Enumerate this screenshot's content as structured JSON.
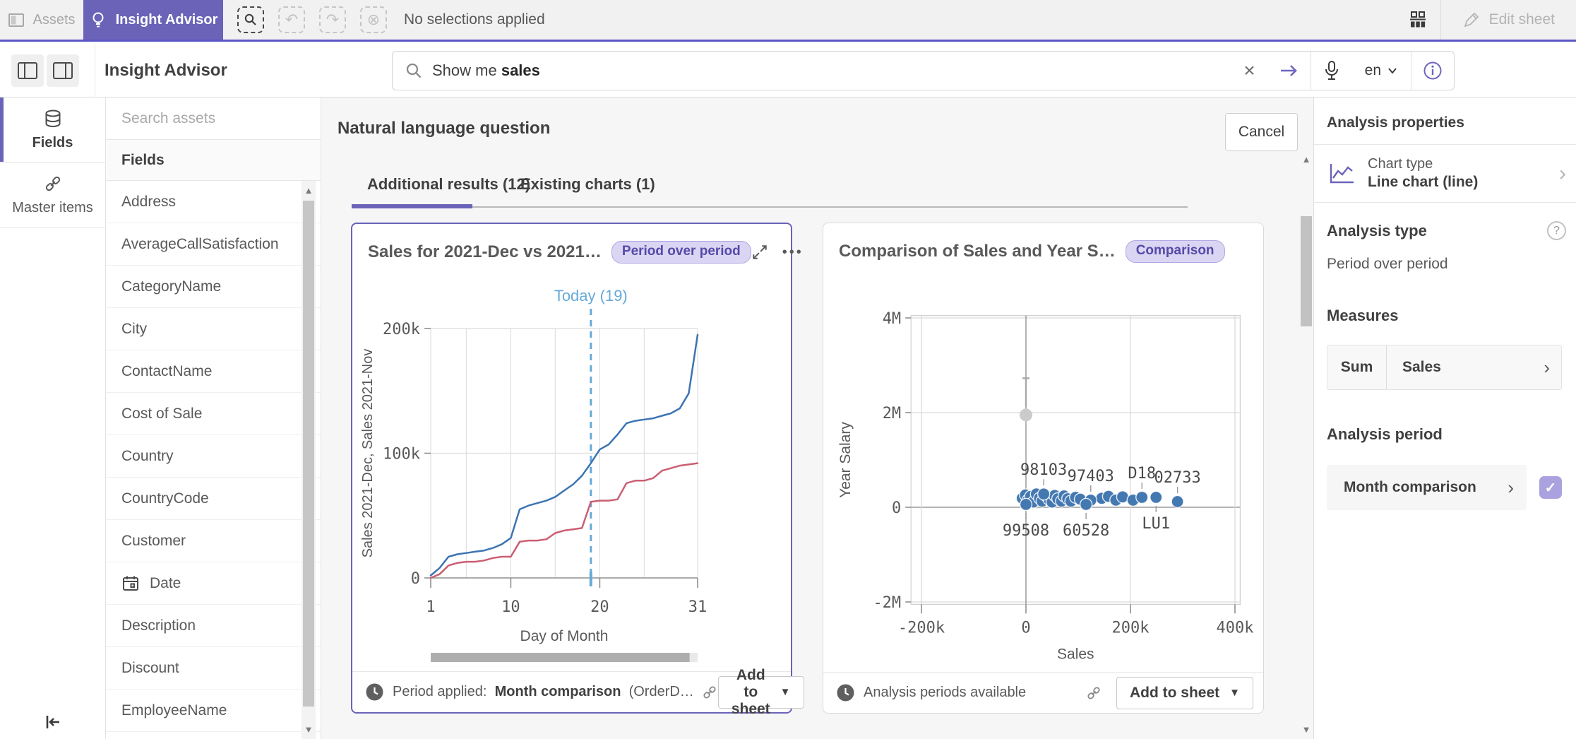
{
  "topbar": {
    "assets_label": "Assets",
    "insight_label": "Insight Advisor",
    "no_selections_label": "No selections applied",
    "edit_sheet_label": "Edit sheet"
  },
  "navbar": {
    "title": "Insight Advisor",
    "search_text_prefix": "Show me ",
    "search_text_term": "sales",
    "language": "en"
  },
  "rail": {
    "fields_label": "Fields",
    "master_items_label": "Master items"
  },
  "assets_panel": {
    "search_placeholder": "Search assets",
    "section_header": "Fields",
    "fields": [
      {
        "label": "Address"
      },
      {
        "label": "AverageCallSatisfaction"
      },
      {
        "label": "CategoryName"
      },
      {
        "label": "City"
      },
      {
        "label": "ContactName"
      },
      {
        "label": "Cost of Sale"
      },
      {
        "label": "Country"
      },
      {
        "label": "CountryCode"
      },
      {
        "label": "Customer"
      },
      {
        "label": "Date",
        "icon": "calendar-icon"
      },
      {
        "label": "Description"
      },
      {
        "label": "Discount"
      },
      {
        "label": "EmployeeName"
      }
    ]
  },
  "main": {
    "header_title": "Natural language question",
    "cancel_label": "Cancel",
    "tab_additional": "Additional results (12)",
    "tab_existing": "Existing charts (1)"
  },
  "cards": {
    "period_chart": {
      "title": "Sales for 2021-Dec vs 2021…",
      "badge": "Period over period",
      "footer_prefix": "Period applied:",
      "footer_period": "Month comparison",
      "footer_suffix": "(OrderD…",
      "add_button": "Add to sheet"
    },
    "comparison_chart": {
      "title": "Comparison of Sales and Year S…",
      "badge": "Comparison",
      "footer_text": "Analysis periods available",
      "add_button": "Add to sheet"
    }
  },
  "right_panel": {
    "header": "Analysis properties",
    "chart_type_label": "Chart type",
    "chart_type_value": "Line chart (line)",
    "analysis_type_header": "Analysis type",
    "analysis_type_value": "Period over period",
    "measures_header": "Measures",
    "measure_aggregation": "Sum",
    "measure_field": "Sales",
    "analysis_period_header": "Analysis period",
    "analysis_period_value": "Month comparison"
  },
  "chart_data": [
    {
      "type": "line",
      "title": "Sales for 2021-Dec vs 2021-Nov",
      "xlabel": "Day of Month",
      "ylabel": "Sales 2021-Dec, Sales 2021-Nov",
      "x": [
        1,
        2,
        3,
        4,
        5,
        6,
        7,
        8,
        9,
        10,
        11,
        12,
        13,
        14,
        15,
        16,
        17,
        18,
        19,
        20,
        21,
        22,
        23,
        24,
        25,
        26,
        27,
        28,
        29,
        30,
        31
      ],
      "series": [
        {
          "name": "Sales 2021-Dec",
          "color": "#3d74b2",
          "values": [
            2000,
            8000,
            17000,
            19000,
            20000,
            21000,
            22000,
            24000,
            27000,
            32000,
            55000,
            58000,
            60000,
            62000,
            65000,
            70000,
            75000,
            82000,
            92000,
            103000,
            107000,
            115000,
            124000,
            126000,
            127000,
            128000,
            130000,
            132000,
            136000,
            148000,
            195000
          ]
        },
        {
          "name": "Sales 2021-Nov",
          "color": "#cc5e72",
          "values": [
            0,
            3000,
            10000,
            12000,
            13000,
            13000,
            14000,
            16000,
            17000,
            17000,
            29000,
            30000,
            30000,
            31000,
            36000,
            38000,
            39000,
            40000,
            61000,
            62000,
            62000,
            63000,
            76000,
            78000,
            78000,
            80000,
            86000,
            88000,
            90000,
            91000,
            92000
          ]
        }
      ],
      "ylim": [
        0,
        200000
      ],
      "yticks": [
        {
          "v": 0,
          "label": "0"
        },
        {
          "v": 100000,
          "label": "100k"
        },
        {
          "v": 200000,
          "label": "200k"
        }
      ],
      "xticks": [
        {
          "v": 1,
          "label": "1"
        },
        {
          "v": 10,
          "label": "10"
        },
        {
          "v": 20,
          "label": "20"
        },
        {
          "v": 31,
          "label": "31"
        }
      ],
      "grid_x": [
        1,
        5,
        10,
        15,
        20,
        25,
        31
      ],
      "grid": true,
      "legend": "none",
      "annotation": {
        "label": "Today (19)",
        "x": 19,
        "color": "#66a9d8"
      }
    },
    {
      "type": "scatter",
      "xlabel": "Sales",
      "ylabel": "Year Salary",
      "xlim": [
        -220000,
        410000
      ],
      "ylim": [
        -2050000,
        4050000
      ],
      "xticks": [
        {
          "v": -200000,
          "label": "-200k"
        },
        {
          "v": 0,
          "label": "0"
        },
        {
          "v": 200000,
          "label": "200k"
        },
        {
          "v": 400000,
          "label": "400k"
        }
      ],
      "yticks": [
        {
          "v": -2000000,
          "label": "-2M"
        },
        {
          "v": 0,
          "label": "0"
        },
        {
          "v": 2000000,
          "label": "2M"
        },
        {
          "v": 4000000,
          "label": "4M"
        }
      ],
      "grid": true,
      "point_color": "#4478b1",
      "outlier": {
        "x": 0,
        "y": 1950000,
        "color": "#cbcbcb"
      },
      "points": [
        [
          -7000,
          190000
        ],
        [
          -1000,
          260000
        ],
        [
          4000,
          150000
        ],
        [
          9000,
          230000
        ],
        [
          14000,
          110000
        ],
        [
          20000,
          280000
        ],
        [
          26000,
          190000
        ],
        [
          31000,
          130000
        ],
        [
          38000,
          250000
        ],
        [
          44000,
          170000
        ],
        [
          50000,
          110000
        ],
        [
          55000,
          250000
        ],
        [
          61000,
          180000
        ],
        [
          68000,
          130000
        ],
        [
          73000,
          240000
        ],
        [
          80000,
          180000
        ],
        [
          86000,
          130000
        ],
        [
          95000,
          210000
        ],
        [
          104000,
          170000
        ],
        [
          145000,
          190000
        ],
        [
          158000,
          230000
        ],
        [
          172000,
          150000
        ],
        [
          185000,
          220000
        ],
        [
          205000,
          150000
        ]
      ],
      "labeled_points": [
        {
          "label": "98103",
          "x": 34000,
          "y": 280000,
          "pos": "top"
        },
        {
          "label": "97403",
          "x": 124000,
          "y": 150000,
          "pos": "top"
        },
        {
          "label": "99508",
          "x": 0,
          "y": 60000,
          "pos": "bottom"
        },
        {
          "label": "60528",
          "x": 115000,
          "y": 60000,
          "pos": "bottom"
        },
        {
          "label": "D18",
          "x": 222000,
          "y": 210000,
          "pos": "top"
        },
        {
          "label": "LU1",
          "x": 249000,
          "y": 210000,
          "pos": "bottom"
        },
        {
          "label": "02733",
          "x": 290000,
          "y": 120000,
          "pos": "top"
        }
      ]
    }
  ]
}
